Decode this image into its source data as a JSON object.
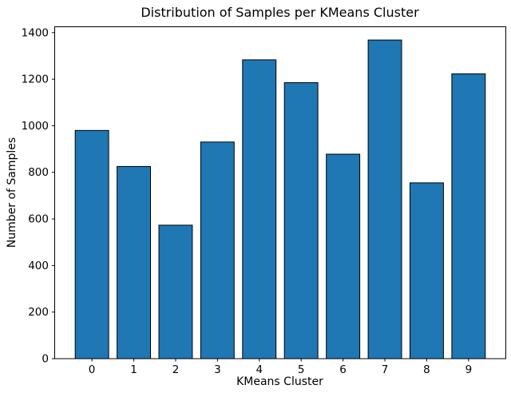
{
  "figure": {
    "background": "#ffffff"
  },
  "chart_data": {
    "type": "bar",
    "title": "Distribution of Samples per KMeans Cluster",
    "xlabel": "KMeans Cluster",
    "ylabel": "Number of Samples",
    "categories": [
      "0",
      "1",
      "2",
      "3",
      "4",
      "5",
      "6",
      "7",
      "8",
      "9"
    ],
    "values": [
      980,
      825,
      573,
      930,
      1283,
      1185,
      878,
      1368,
      755,
      1223
    ],
    "yticks": [
      0,
      200,
      400,
      600,
      800,
      1000,
      1200,
      1400
    ],
    "ylim": [
      0,
      1425
    ],
    "grid": false,
    "legend": null,
    "bar_color": "#1f77b4",
    "bar_edge_color": "#000000",
    "axis_color": "#000000",
    "bar_width_fraction": 0.8
  }
}
